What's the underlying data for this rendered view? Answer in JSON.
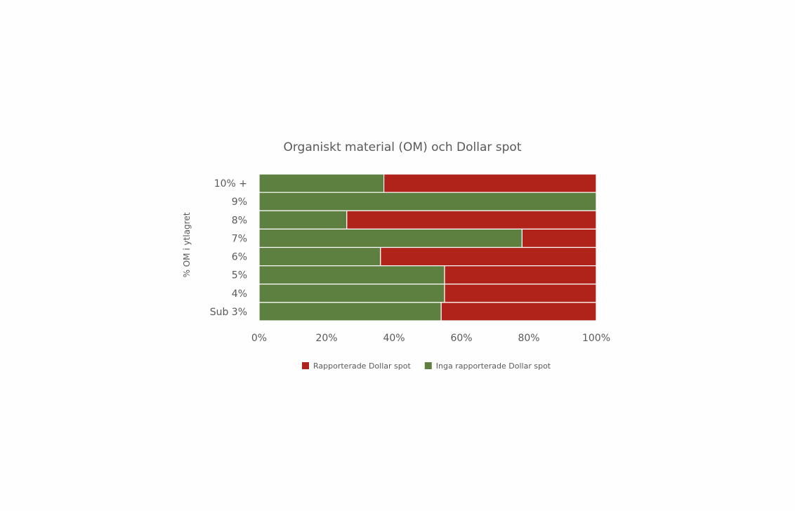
{
  "chart_data": {
    "type": "bar",
    "orientation": "horizontal",
    "stacked": "percent",
    "title": "Organiskt material (OM) och Dollar spot",
    "ylabel": "% OM i ytlagret",
    "xlabel": "",
    "categories": [
      "10% +",
      "9%",
      "8%",
      "7%",
      "6%",
      "5%",
      "4%",
      "Sub 3%"
    ],
    "xlim": [
      0,
      100
    ],
    "x_ticks": [
      "0%",
      "20%",
      "40%",
      "60%",
      "80%",
      "100%"
    ],
    "grid": false,
    "legend_position": "bottom",
    "series": [
      {
        "name": "Rapporterade Dollar spot",
        "color": "#b0231a",
        "values": [
          63,
          0,
          74,
          22,
          64,
          45,
          45,
          46
        ]
      },
      {
        "name": "Inga rapporterade Dollar spot",
        "color": "#5d8040",
        "values": [
          37,
          100,
          26,
          78,
          36,
          55,
          55,
          54
        ]
      }
    ]
  }
}
